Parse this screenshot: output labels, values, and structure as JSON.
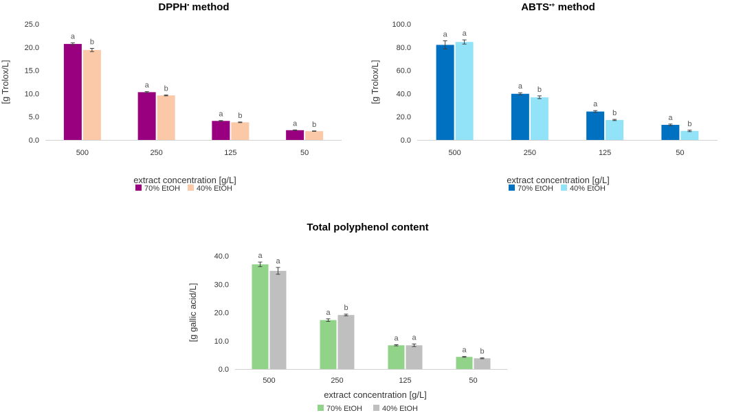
{
  "chart_data": [
    {
      "type": "bar",
      "title": "DPPH• method",
      "title_main": "DPPH",
      "title_sup": "•",
      "title_rest": " method",
      "ylabel": "[g Trolox/L]",
      "xlabel": "extract concentration [g/L]",
      "ylim": [
        0,
        25
      ],
      "yticks": [
        "0.0",
        "5.0",
        "10.0",
        "15.0",
        "20.0",
        "25.0"
      ],
      "categories": [
        "500",
        "250",
        "125",
        "50"
      ],
      "series": [
        {
          "name": "70% EtOH",
          "color": "#990080",
          "values": [
            20.7,
            10.3,
            4.1,
            2.1
          ],
          "errors": [
            0.25,
            0.12,
            0.08,
            0.06
          ],
          "letters": [
            "a",
            "a",
            "a",
            "a"
          ]
        },
        {
          "name": "40% EtOH",
          "color": "#FBC8A8",
          "values": [
            19.4,
            9.6,
            3.8,
            1.9
          ],
          "errors": [
            0.35,
            0.1,
            0.07,
            0.05
          ],
          "letters": [
            "b",
            "b",
            "b",
            "b"
          ]
        }
      ]
    },
    {
      "type": "bar",
      "title": "ABTS•+ method",
      "title_main": "ABTS",
      "title_sup": "•+",
      "title_rest": " method",
      "ylabel": "[g Trolox/L]",
      "xlabel": "extract concentration [g/L]",
      "ylim": [
        0,
        100
      ],
      "yticks": [
        "0.0",
        "20.0",
        "40.0",
        "60.0",
        "80.0",
        "100.0"
      ],
      "categories": [
        "500",
        "250",
        "125",
        "50"
      ],
      "series": [
        {
          "name": "70% EtOH",
          "color": "#0070C0",
          "values": [
            82.0,
            39.8,
            24.5,
            13.0
          ],
          "errors": [
            3.5,
            0.9,
            0.8,
            0.7
          ],
          "letters": [
            "a",
            "a",
            "a",
            "a"
          ]
        },
        {
          "name": "40% EtOH",
          "color": "#93E3F8",
          "values": [
            84.5,
            36.8,
            17.2,
            7.8
          ],
          "errors": [
            1.8,
            1.2,
            0.5,
            0.6
          ],
          "letters": [
            "a",
            "b",
            "b",
            "b"
          ]
        }
      ]
    },
    {
      "type": "bar",
      "title": "Total polyphenol content",
      "title_main": "Total polyphenol content",
      "title_sup": "",
      "title_rest": "",
      "ylabel": "[g gallic acid/L]",
      "xlabel": "extract concentration [g/L]",
      "ylim": [
        0,
        40
      ],
      "yticks": [
        "0.0",
        "10.0",
        "20.0",
        "30.0",
        "40.0"
      ],
      "categories": [
        "500",
        "250",
        "125",
        "50"
      ],
      "series": [
        {
          "name": "70% EtOH",
          "color": "#92D38A",
          "values": [
            37.0,
            17.3,
            8.4,
            4.3
          ],
          "errors": [
            0.8,
            0.45,
            0.2,
            0.15
          ],
          "letters": [
            "a",
            "a",
            "a",
            "a"
          ]
        },
        {
          "name": "40% EtOH",
          "color": "#BFBFBF",
          "values": [
            34.7,
            19.1,
            8.4,
            3.8
          ],
          "errors": [
            1.2,
            0.3,
            0.45,
            0.15
          ],
          "letters": [
            "a",
            "b",
            "a",
            "b"
          ]
        }
      ]
    }
  ]
}
